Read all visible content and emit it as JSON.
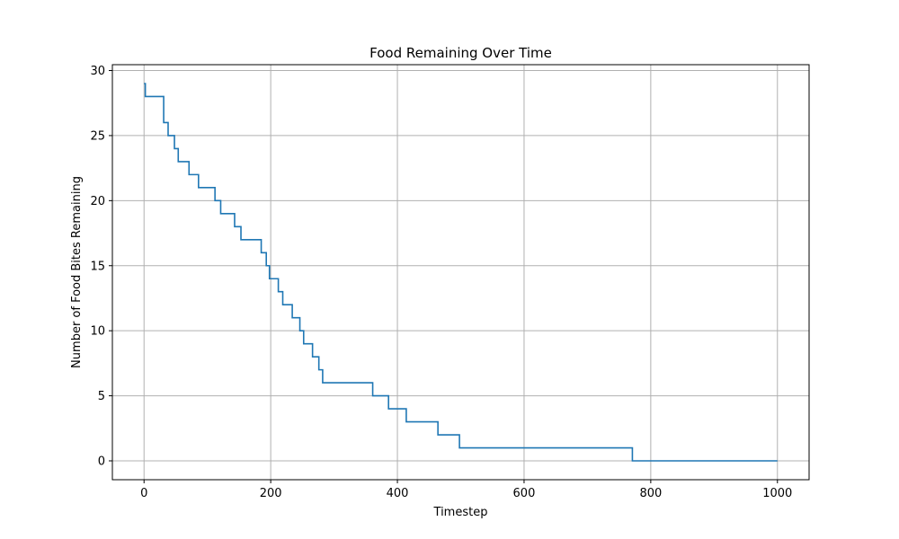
{
  "chart_data": {
    "type": "line",
    "title": "Food Remaining Over Time",
    "xlabel": "Timestep",
    "ylabel": "Number of Food Bites Remaining",
    "xlim": [
      -50,
      1050
    ],
    "ylim": [
      -1.45,
      30.45
    ],
    "xticks": [
      0,
      200,
      400,
      600,
      800,
      1000
    ],
    "yticks": [
      0,
      5,
      10,
      15,
      20,
      25,
      30
    ],
    "xtick_labels": [
      "0",
      "200",
      "400",
      "600",
      "800",
      "1000"
    ],
    "ytick_labels": [
      "0",
      "5",
      "10",
      "15",
      "20",
      "25",
      "30"
    ],
    "grid": true,
    "line_style": "step",
    "series": [
      {
        "name": "Food Remaining",
        "color": "#1f77b4",
        "x": [
          0,
          2,
          31,
          38,
          48,
          54,
          71,
          86,
          112,
          121,
          143,
          153,
          185,
          193,
          198,
          212,
          219,
          234,
          246,
          252,
          266,
          276,
          282,
          361,
          386,
          414,
          464,
          498,
          771,
          1000
        ],
        "y": [
          29,
          28,
          26,
          25,
          24,
          23,
          22,
          21,
          20,
          19,
          18,
          17,
          16,
          15,
          14,
          13,
          12,
          11,
          10,
          9,
          8,
          7,
          6,
          5,
          4,
          3,
          2,
          1,
          0,
          0
        ]
      }
    ]
  }
}
